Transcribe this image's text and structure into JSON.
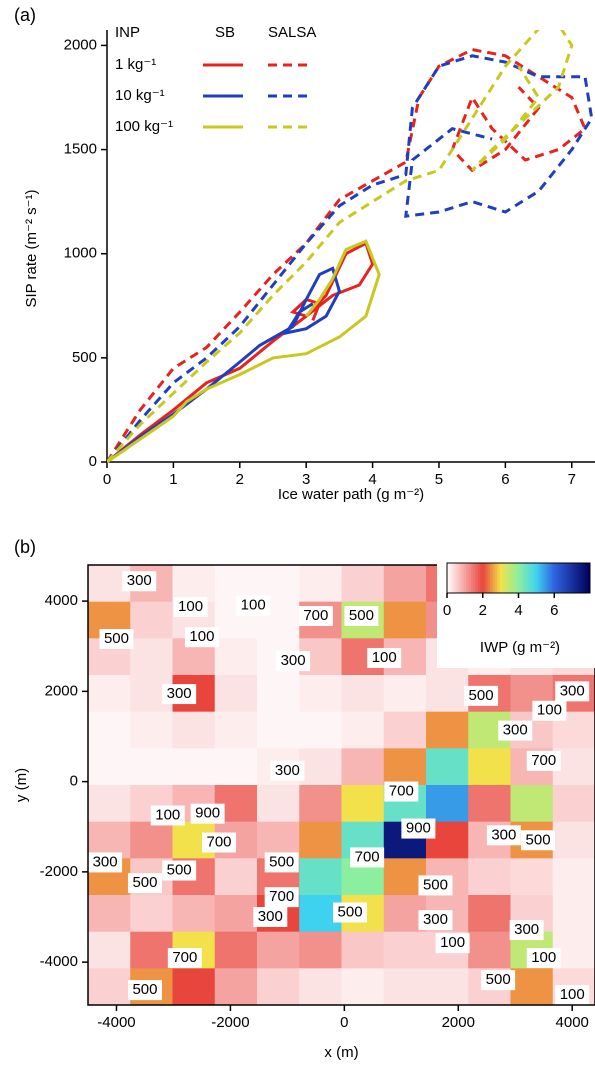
{
  "chart_data": [
    {
      "type": "line",
      "panel_label": "(a)",
      "xlabel": "Ice water path (g m⁻²)",
      "ylabel": "SIP rate (m⁻² s⁻¹)",
      "xlim": [
        0,
        7.35
      ],
      "ylim": [
        0,
        2050
      ],
      "xticks": [
        0,
        1,
        2,
        3,
        4,
        5,
        6,
        7
      ],
      "yticks": [
        0,
        500,
        1000,
        1500,
        2000
      ],
      "legend": {
        "title": "INP",
        "columns": [
          {
            "name": "SB",
            "dash": false
          },
          {
            "name": "SALSA",
            "dash": true
          }
        ]
      },
      "series": [
        {
          "name": "1 kg⁻¹",
          "color": "#e8231e",
          "runs": [
            {
              "x": [
                0,
                0.5,
                1,
                1.5,
                2,
                2.5,
                3,
                3.3,
                3.6,
                3.9,
                4.0,
                3.8,
                3.4,
                3.0,
                2.8,
                3.0,
                3.2,
                3.1
              ],
              "values": [
                0,
                130,
                250,
                380,
                450,
                580,
                700,
                800,
                1000,
                1050,
                950,
                850,
                800,
                700,
                720,
                780,
                760,
                680
              ]
            },
            {
              "x": [
                0,
                0.5,
                1,
                1.5,
                2,
                2.5,
                3,
                3.5,
                4,
                4.5,
                4.7,
                5,
                5.5,
                6,
                6.5,
                7,
                7.2,
                6.8,
                6.3,
                5.8,
                5.5,
                5.2,
                5.5,
                6,
                6.5,
                6.2
              ],
              "values": [
                0,
                250,
                450,
                550,
                720,
                900,
                1050,
                1260,
                1350,
                1440,
                1750,
                1900,
                1980,
                1950,
                1850,
                1750,
                1600,
                1500,
                1450,
                1600,
                1750,
                1500,
                1400,
                1500,
                1700,
                1800
              ]
            }
          ]
        },
        {
          "name": "10 kg⁻¹",
          "color": "#1f3fbf",
          "runs": [
            {
              "x": [
                0,
                0.5,
                1,
                1.5,
                2,
                2.3,
                2.8,
                3.0,
                3.2,
                3.4,
                3.5,
                3.3,
                3.0,
                2.7,
                2.9,
                3.1
              ],
              "values": [
                0,
                120,
                230,
                350,
                480,
                560,
                650,
                780,
                900,
                930,
                820,
                700,
                640,
                620,
                720,
                760
              ]
            },
            {
              "x": [
                0,
                0.5,
                1,
                1.5,
                2,
                2.5,
                3,
                3.5,
                4,
                4.5,
                4.6,
                5,
                5.5,
                6,
                6.5,
                7.2,
                7.3,
                7,
                6.5,
                6,
                5.5,
                5,
                4.5,
                4.6,
                5.2,
                5.8
              ],
              "values": [
                0,
                200,
                380,
                500,
                650,
                850,
                1050,
                1230,
                1330,
                1380,
                1700,
                1900,
                1950,
                1920,
                1850,
                1850,
                1650,
                1500,
                1300,
                1200,
                1250,
                1200,
                1180,
                1450,
                1600,
                1550
              ]
            }
          ]
        },
        {
          "name": "100 kg⁻¹",
          "color": "#c8c81e",
          "runs": [
            {
              "x": [
                0,
                0.5,
                1,
                1.2,
                1.5,
                2,
                2.5,
                3,
                3.5,
                3.9,
                4.1,
                3.9,
                3.6,
                3.4,
                3.2,
                3.0
              ],
              "values": [
                0,
                110,
                220,
                290,
                350,
                420,
                500,
                520,
                600,
                700,
                900,
                1060,
                1020,
                880,
                780,
                700
              ]
            },
            {
              "x": [
                0,
                0.5,
                1,
                1.5,
                2,
                2.5,
                3,
                3.5,
                4,
                4.5,
                5,
                5.5,
                6,
                6.5,
                6.8,
                7,
                6.8,
                6.3,
                5.8,
                5.5,
                6,
                6.5,
                6.2
              ],
              "values": [
                0,
                180,
                330,
                480,
                620,
                800,
                960,
                1150,
                1250,
                1350,
                1400,
                1650,
                1900,
                2080,
                2100,
                2000,
                1800,
                1650,
                1500,
                1400,
                1550,
                1750,
                1900
              ]
            }
          ]
        }
      ]
    },
    {
      "type": "heatmap",
      "panel_label": "(b)",
      "xlabel": "x (m)",
      "ylabel": "y (m)",
      "xlim": [
        -4500,
        4400
      ],
      "ylim": [
        -4950,
        4800
      ],
      "xticks": [
        -4000,
        -2000,
        0,
        2000,
        4000
      ],
      "yticks": [
        -4000,
        -2000,
        0,
        2000,
        4000
      ],
      "values": [
        [
          0.3,
          0.8,
          0.2,
          0.1,
          0.1,
          0.2,
          0.5,
          1,
          1.5,
          0.4,
          0.2,
          0.1
        ],
        [
          2.5,
          0.5,
          0.3,
          0.1,
          0.1,
          1.2,
          3.5,
          2.5,
          1.2,
          0.3,
          0.1,
          0.1
        ],
        [
          0.5,
          0.3,
          0.8,
          0.2,
          0.1,
          0.6,
          1.5,
          0.8,
          0.3,
          0.2,
          0.3,
          0.4
        ],
        [
          0.2,
          0.3,
          2.0,
          0.3,
          0.1,
          0.2,
          0.3,
          0.2,
          0.3,
          1.5,
          1.2,
          1.5
        ],
        [
          0.1,
          0.2,
          0.3,
          0.2,
          0.1,
          0.1,
          0.2,
          0.5,
          2.5,
          3.5,
          0.6,
          0.4
        ],
        [
          0.1,
          0.1,
          0.1,
          0.1,
          0.2,
          0.3,
          0.8,
          2.5,
          4.5,
          3,
          0.8,
          0.3
        ],
        [
          0.3,
          0.5,
          0.8,
          1.5,
          0.3,
          1.2,
          3,
          4.5,
          5.5,
          1.5,
          3.5,
          0.5
        ],
        [
          0.8,
          1.2,
          3.0,
          1.0,
          0.8,
          2.5,
          4.5,
          7.5,
          2,
          0.8,
          2.5,
          0.3
        ],
        [
          2.5,
          0.6,
          1.5,
          0.5,
          1.5,
          4.5,
          4,
          2.5,
          0.8,
          0.5,
          0.4,
          0.2
        ],
        [
          0.8,
          0.5,
          0.8,
          1.0,
          2,
          5,
          3,
          1,
          0.8,
          1.5,
          0.5,
          0.2
        ],
        [
          0.3,
          1.5,
          3.0,
          1.5,
          1.0,
          1.2,
          0.6,
          0.5,
          0.5,
          1.2,
          3.5,
          0.2
        ],
        [
          0.5,
          2.5,
          2,
          1.0,
          0.5,
          0.3,
          0.2,
          0.3,
          0.3,
          0.5,
          2.5,
          0.4
        ]
      ],
      "colormap": [
        {
          "value": 0,
          "color": "#ffffff"
        },
        {
          "value": 1,
          "color": "#f5a3a0"
        },
        {
          "value": 2,
          "color": "#e8453c"
        },
        {
          "value": 3,
          "color": "#f2e14a"
        },
        {
          "value": 4,
          "color": "#8cefa0"
        },
        {
          "value": 5,
          "color": "#3fd2f0"
        },
        {
          "value": 6,
          "color": "#2f63e0"
        },
        {
          "value": 8,
          "color": "#00005a"
        }
      ],
      "colorbar": {
        "label": "IWP (g m⁻²)",
        "lim": [
          0,
          8
        ],
        "ticks": [
          0,
          2,
          4,
          6
        ]
      },
      "contour_labels": [
        {
          "x": -3600,
          "y": 4440,
          "value": 300
        },
        {
          "x": -2700,
          "y": 3870,
          "value": 100
        },
        {
          "x": -1600,
          "y": 3900,
          "value": 100
        },
        {
          "x": -4000,
          "y": 3160,
          "value": 500
        },
        {
          "x": -2500,
          "y": 3200,
          "value": 100
        },
        {
          "x": -500,
          "y": 3670,
          "value": 700
        },
        {
          "x": 300,
          "y": 3670,
          "value": 500
        },
        {
          "x": -900,
          "y": 2670,
          "value": 300
        },
        {
          "x": 700,
          "y": 2740,
          "value": 100
        },
        {
          "x": -2900,
          "y": 1940,
          "value": 300
        },
        {
          "x": 2400,
          "y": 1900,
          "value": 500
        },
        {
          "x": 4000,
          "y": 2000,
          "value": 300
        },
        {
          "x": 3600,
          "y": 1570,
          "value": 100
        },
        {
          "x": 3000,
          "y": 1130,
          "value": 300
        },
        {
          "x": 3500,
          "y": 460,
          "value": 700
        },
        {
          "x": -1000,
          "y": 240,
          "value": 300
        },
        {
          "x": -3100,
          "y": -750,
          "value": 100
        },
        {
          "x": -2400,
          "y": -710,
          "value": 900
        },
        {
          "x": -2200,
          "y": -1350,
          "value": 700
        },
        {
          "x": 1000,
          "y": -220,
          "value": 700
        },
        {
          "x": 1300,
          "y": -1040,
          "value": 900
        },
        {
          "x": 2800,
          "y": -1190,
          "value": 300
        },
        {
          "x": 3400,
          "y": -1300,
          "value": 500
        },
        {
          "x": -4200,
          "y": -1790,
          "value": 300
        },
        {
          "x": -3500,
          "y": -2250,
          "value": 500
        },
        {
          "x": -2900,
          "y": -1970,
          "value": 500
        },
        {
          "x": -1100,
          "y": -1790,
          "value": 500
        },
        {
          "x": 400,
          "y": -1680,
          "value": 700
        },
        {
          "x": -1100,
          "y": -2560,
          "value": 700
        },
        {
          "x": -1300,
          "y": -3000,
          "value": 300
        },
        {
          "x": 100,
          "y": -2900,
          "value": 500
        },
        {
          "x": 1600,
          "y": -2300,
          "value": 500
        },
        {
          "x": 1600,
          "y": -3070,
          "value": 300
        },
        {
          "x": 1900,
          "y": -3580,
          "value": 100
        },
        {
          "x": 3200,
          "y": -3290,
          "value": 300
        },
        {
          "x": 3500,
          "y": -3910,
          "value": 100
        },
        {
          "x": 2700,
          "y": -4400,
          "value": 500
        },
        {
          "x": -2800,
          "y": -3910,
          "value": 700
        },
        {
          "x": -3500,
          "y": -4620,
          "value": 500
        },
        {
          "x": 4000,
          "y": -4730,
          "value": 100
        }
      ]
    }
  ]
}
